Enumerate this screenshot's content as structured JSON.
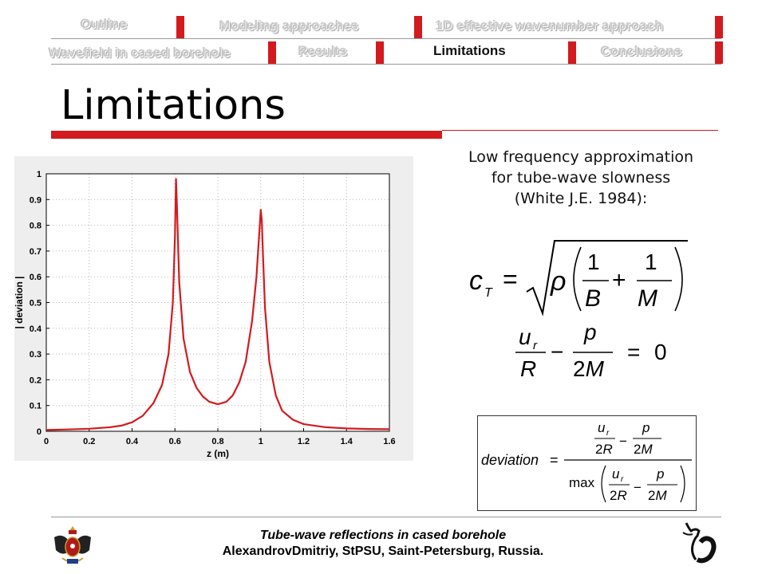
{
  "nav": {
    "row1": [
      "Outline",
      "Modeling approaches",
      "1D effective wavenumber approach"
    ],
    "row2": [
      "Wavefield in cased borehole",
      "Results",
      "Limitations",
      "Conclusions"
    ],
    "active": "Limitations",
    "accent": "#d21a1f"
  },
  "slide": {
    "title": "Limitations",
    "caption_lines": [
      "Low frequency approximation",
      "for tube-wave slowness",
      "(White J.E. 1984):"
    ]
  },
  "chart_data": {
    "type": "line",
    "xlabel": "z (m)",
    "ylabel": "| deviation |",
    "xlim": [
      0,
      1.6
    ],
    "ylim": [
      0,
      1
    ],
    "xticks": [
      "0",
      "0.2",
      "0.4",
      "0.6",
      "0.8",
      "1",
      "1.2",
      "1.4",
      "1.6"
    ],
    "yticks": [
      "0",
      "0.1",
      "0.2",
      "0.3",
      "0.4",
      "0.5",
      "0.6",
      "0.7",
      "0.8",
      "0.9",
      "1"
    ],
    "grid": true,
    "series": [
      {
        "color": "#d21a1f",
        "x": [
          0,
          0.1,
          0.2,
          0.3,
          0.35,
          0.4,
          0.45,
          0.5,
          0.54,
          0.57,
          0.59,
          0.6,
          0.605,
          0.61,
          0.62,
          0.64,
          0.67,
          0.7,
          0.73,
          0.76,
          0.8,
          0.84,
          0.87,
          0.9,
          0.93,
          0.96,
          0.98,
          0.99,
          1.0,
          1.005,
          1.01,
          1.02,
          1.04,
          1.07,
          1.1,
          1.15,
          1.2,
          1.3,
          1.4,
          1.5,
          1.6
        ],
        "y": [
          0.005,
          0.007,
          0.01,
          0.016,
          0.022,
          0.035,
          0.06,
          0.11,
          0.18,
          0.3,
          0.5,
          0.75,
          0.98,
          0.86,
          0.58,
          0.36,
          0.23,
          0.17,
          0.135,
          0.115,
          0.105,
          0.115,
          0.14,
          0.19,
          0.27,
          0.43,
          0.6,
          0.73,
          0.86,
          0.82,
          0.7,
          0.48,
          0.27,
          0.14,
          0.08,
          0.045,
          0.028,
          0.016,
          0.011,
          0.009,
          0.008
        ]
      }
    ]
  },
  "footer": {
    "line1": "Tube-wave reflections in cased borehole",
    "line2": "AlexandrovDmitriy, StPSU, Saint-Petersburg, Russia."
  }
}
